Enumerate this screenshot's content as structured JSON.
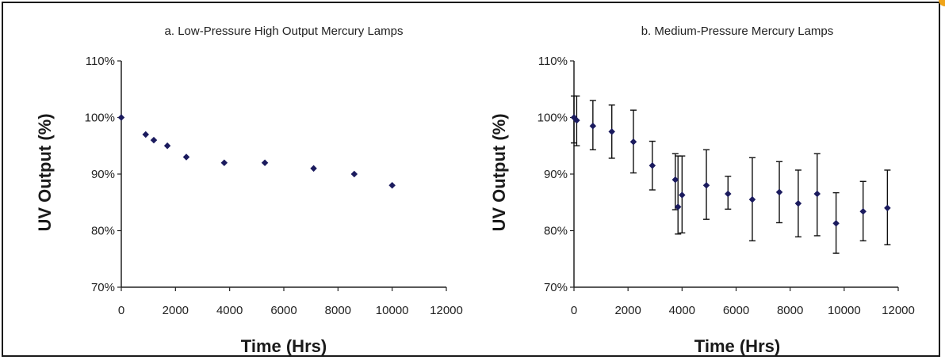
{
  "chart_data": [
    {
      "type": "scatter",
      "title": "a.  Low-Pressure High Output Mercury Lamps",
      "xlabel": "Time (Hrs)",
      "ylabel": "UV Output (%)",
      "xlim": [
        0,
        12000
      ],
      "ylim": [
        70,
        110
      ],
      "xticks": [
        "0",
        "2000",
        "4000",
        "6000",
        "8000",
        "10000",
        "12000"
      ],
      "yticks": [
        "70%",
        "80%",
        "90%",
        "100%",
        "110%"
      ],
      "grid": false,
      "marker_color": "#1b1b5e",
      "x": [
        0,
        900,
        1200,
        1700,
        2400,
        3800,
        5300,
        7100,
        8600,
        10000
      ],
      "y": [
        100,
        97,
        96,
        95,
        93,
        92,
        92,
        91,
        90,
        88
      ]
    },
    {
      "type": "scatter",
      "title": "b.  Medium-Pressure Mercury Lamps",
      "xlabel": "Time (Hrs)",
      "ylabel": "UV Output (%)",
      "xlim": [
        0,
        12000
      ],
      "ylim": [
        70,
        110
      ],
      "xticks": [
        "0",
        "2000",
        "4000",
        "6000",
        "8000",
        "10000",
        "12000"
      ],
      "yticks": [
        "70%",
        "80%",
        "90%",
        "100%",
        "110%"
      ],
      "grid": false,
      "error_bars": true,
      "marker_color": "#1b1b5e",
      "x": [
        0,
        100,
        700,
        1400,
        2200,
        2900,
        3750,
        3850,
        4000,
        4900,
        5700,
        6600,
        7600,
        8300,
        9000,
        9700,
        10700,
        11600
      ],
      "y": [
        100,
        99.5,
        98.5,
        97.5,
        95.7,
        91.5,
        89,
        84.2,
        86.3,
        88,
        86.5,
        85.5,
        86.8,
        84.8,
        86.5,
        81.3,
        83.4,
        84
      ],
      "y_low": [
        95.5,
        95,
        94.3,
        92.8,
        90.2,
        87.2,
        83.7,
        79.4,
        79.6,
        82,
        83.8,
        78.2,
        81.4,
        78.9,
        79.1,
        76,
        78.2,
        77.5
      ],
      "y_high": [
        103.8,
        103.8,
        103,
        102.2,
        101.3,
        95.8,
        93.6,
        93.2,
        93.2,
        94.3,
        89.6,
        92.9,
        92.2,
        90.7,
        93.6,
        86.7,
        88.7,
        90.7
      ]
    }
  ]
}
